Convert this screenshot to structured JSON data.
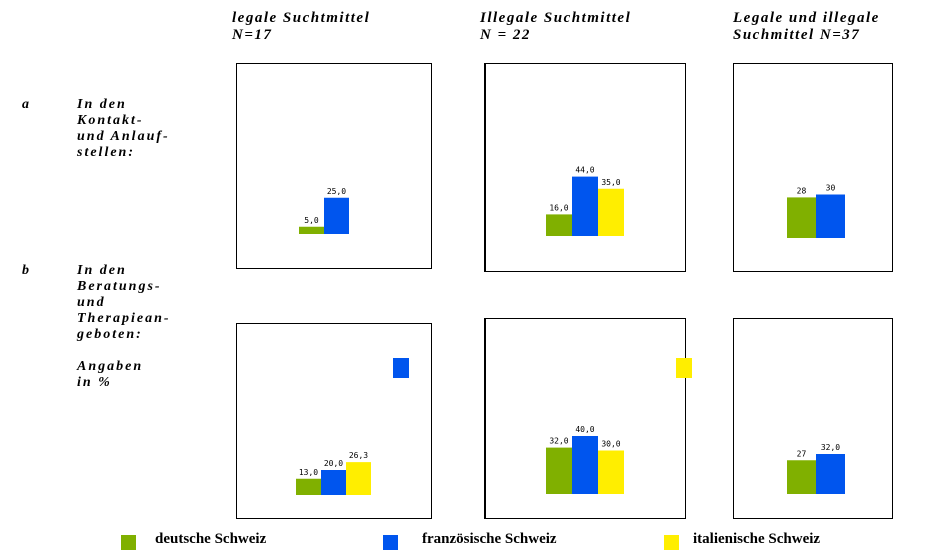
{
  "columns": [
    {
      "title": "legale Suchtmittel\nN=17"
    },
    {
      "title": "Illegale Suchtmittel\nN = 22"
    },
    {
      "title": "Legale und illegale\nSuchmittel N=37"
    }
  ],
  "rows": [
    {
      "letter": "a",
      "label": "In den\nKontakt-\nund Anlauf-\nstellen:"
    },
    {
      "letter": "b",
      "label": "In den\nBeratungs-\nund\nTherapiean-\ngeboten:\n\nAngaben\nin %"
    }
  ],
  "colors": {
    "deutsche": "#80b000",
    "franzoesische": "#0055ee",
    "italienische": "#ffee00"
  },
  "legend": {
    "deutsche": "deutsche Schweiz",
    "franzoesische": "französische Schweiz",
    "italienische": "italienische Schweiz"
  },
  "chart_data": [
    {
      "type": "bar",
      "panel": "a-legale",
      "categories": [
        "deutsche Schweiz",
        "französische Schweiz"
      ],
      "values": [
        5.0,
        25.0
      ],
      "labels": [
        "5,0",
        "25,0"
      ]
    },
    {
      "type": "bar",
      "panel": "a-illegale",
      "categories": [
        "deutsche Schweiz",
        "französische Schweiz",
        "italienische Schweiz"
      ],
      "values": [
        16.0,
        44.0,
        35.0
      ],
      "labels": [
        "16,0",
        "44,0",
        "35,0"
      ]
    },
    {
      "type": "bar",
      "panel": "a-beide",
      "categories": [
        "deutsche Schweiz",
        "französische Schweiz"
      ],
      "values": [
        28,
        30
      ],
      "labels": [
        "28",
        "30"
      ]
    },
    {
      "type": "bar",
      "panel": "b-legale",
      "categories": [
        "deutsche Schweiz",
        "französische Schweiz",
        "italienische Schweiz"
      ],
      "values": [
        13.0,
        20.0,
        26.3
      ],
      "labels": [
        "13,0",
        "20,0",
        "26,3"
      ]
    },
    {
      "type": "bar",
      "panel": "b-illegale",
      "categories": [
        "deutsche Schweiz",
        "französische Schweiz",
        "italienische Schweiz"
      ],
      "values": [
        32.0,
        40.0,
        30.0
      ],
      "labels": [
        "32,0",
        "40,0",
        "30,0"
      ]
    },
    {
      "type": "bar",
      "panel": "b-beide",
      "categories": [
        "deutsche Schweiz",
        "französische Schweiz"
      ],
      "values": [
        27,
        32.0
      ],
      "labels": [
        "27",
        "32,0"
      ]
    }
  ]
}
